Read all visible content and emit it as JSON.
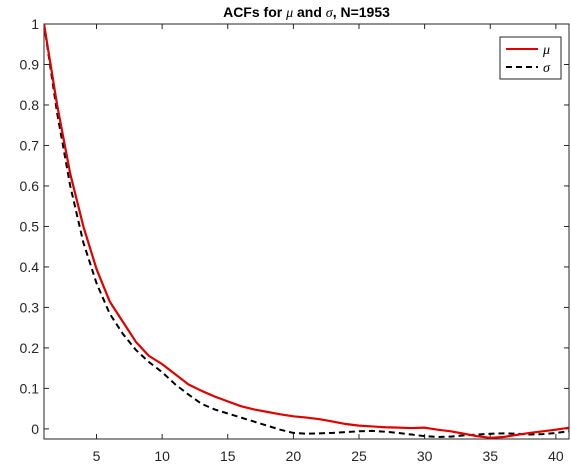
{
  "chart_data": {
    "type": "line",
    "title_parts": [
      "ACFs for ",
      "μ",
      " and ",
      "σ",
      ", N=1953"
    ],
    "xlabel": "",
    "ylabel": "",
    "xlim": [
      1,
      41
    ],
    "ylim": [
      -0.025,
      1
    ],
    "xticks": [
      5,
      10,
      15,
      20,
      25,
      30,
      35,
      40
    ],
    "yticks": [
      0,
      0.1,
      0.2,
      0.3,
      0.4,
      0.5,
      0.6,
      0.7,
      0.8,
      0.9,
      1
    ],
    "ytick_labels": [
      "0",
      "0.1",
      "0.2",
      "0.3",
      "0.4",
      "0.5",
      "0.6",
      "0.7",
      "0.8",
      "0.9",
      "1"
    ],
    "grid": false,
    "legend_position": "top-right",
    "x": [
      1,
      2,
      3,
      4,
      5,
      6,
      7,
      8,
      9,
      10,
      11,
      12,
      13,
      14,
      15,
      16,
      17,
      18,
      19,
      20,
      21,
      22,
      23,
      24,
      25,
      26,
      27,
      28,
      29,
      30,
      31,
      32,
      33,
      34,
      35,
      36,
      37,
      38,
      39,
      40,
      41
    ],
    "series": [
      {
        "name": "μ",
        "color": "#e00000",
        "dash": "solid",
        "values": [
          1.0,
          0.8,
          0.63,
          0.5,
          0.395,
          0.315,
          0.265,
          0.215,
          0.18,
          0.16,
          0.135,
          0.11,
          0.094,
          0.08,
          0.068,
          0.056,
          0.048,
          0.042,
          0.036,
          0.031,
          0.028,
          0.024,
          0.018,
          0.012,
          0.008,
          0.006,
          0.004,
          0.003,
          0.002,
          0.003,
          -0.002,
          -0.006,
          -0.012,
          -0.018,
          -0.022,
          -0.02,
          -0.015,
          -0.01,
          -0.006,
          -0.002,
          0.003
        ]
      },
      {
        "name": "σ",
        "color": "#000000",
        "dash": "dashed",
        "values": [
          1.0,
          0.78,
          0.6,
          0.46,
          0.36,
          0.285,
          0.235,
          0.195,
          0.165,
          0.14,
          0.11,
          0.085,
          0.062,
          0.048,
          0.038,
          0.028,
          0.018,
          0.008,
          -0.002,
          -0.01,
          -0.012,
          -0.011,
          -0.01,
          -0.008,
          -0.006,
          -0.005,
          -0.007,
          -0.01,
          -0.014,
          -0.018,
          -0.02,
          -0.019,
          -0.016,
          -0.014,
          -0.012,
          -0.011,
          -0.012,
          -0.014,
          -0.013,
          -0.01,
          -0.006
        ]
      }
    ]
  }
}
